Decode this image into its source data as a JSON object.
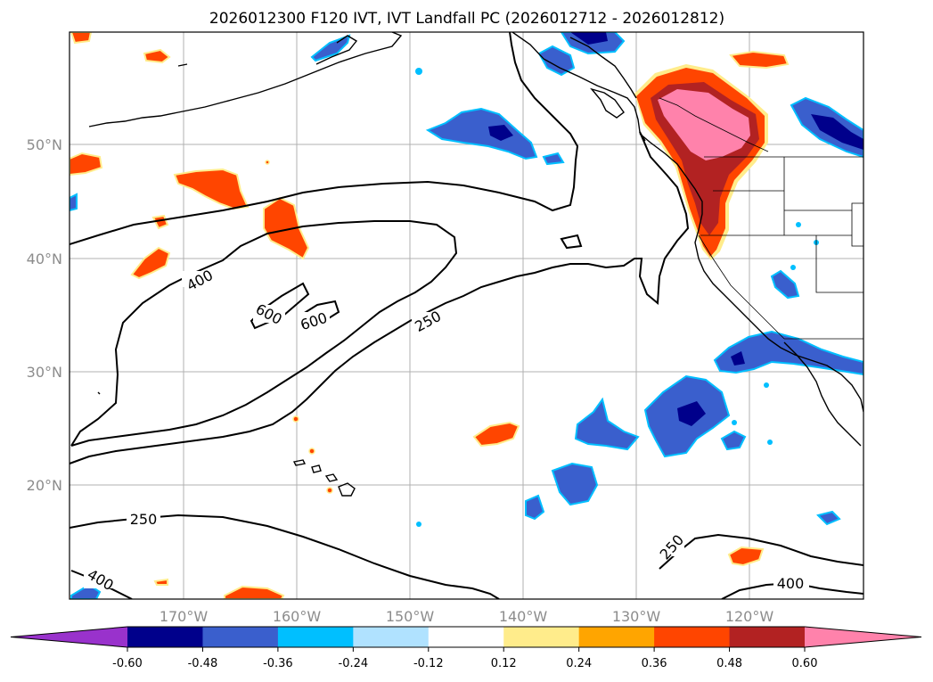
{
  "title": "2026012300 F120 IVT, IVT Landfall PC (2026012712 - 2026012812)",
  "map": {
    "lon_labels": [
      "170°W",
      "160°W",
      "150°W",
      "140°W",
      "130°W",
      "120°W"
    ],
    "lat_labels": [
      "50°N",
      "40°N",
      "30°N",
      "20°N"
    ]
  },
  "contours": {
    "labels": [
      "400",
      "600",
      "600",
      "250",
      "250",
      "250",
      "400",
      "400"
    ],
    "units": "IVT"
  },
  "colorbar": {
    "colors": [
      "#9932cc",
      "#00008b",
      "#3a5fcd",
      "#00bfff",
      "#b0e2ff",
      "#ffffff",
      "#ffec8b",
      "#ffa500",
      "#ff4500",
      "#b22222",
      "#ff82ab"
    ],
    "tick_labels": [
      "-0.60",
      "-0.48",
      "-0.36",
      "-0.24",
      "-0.12",
      "0.12",
      "0.24",
      "0.36",
      "0.48",
      "0.60"
    ]
  },
  "chart_data": {
    "type": "map",
    "title": "2026012300 F120 IVT, IVT Landfall PC (2026012712 - 2026012812)",
    "x_ticks": [
      "170°W",
      "160°W",
      "150°W",
      "140°W",
      "130°W",
      "120°W"
    ],
    "y_ticks": [
      "50°N",
      "40°N",
      "30°N",
      "20°N"
    ],
    "colorbar_levels": [
      -0.6,
      -0.48,
      -0.36,
      -0.24,
      -0.12,
      0.12,
      0.24,
      0.36,
      0.48,
      0.6
    ],
    "contour_levels": [
      250,
      400,
      600
    ],
    "grid": true
  }
}
